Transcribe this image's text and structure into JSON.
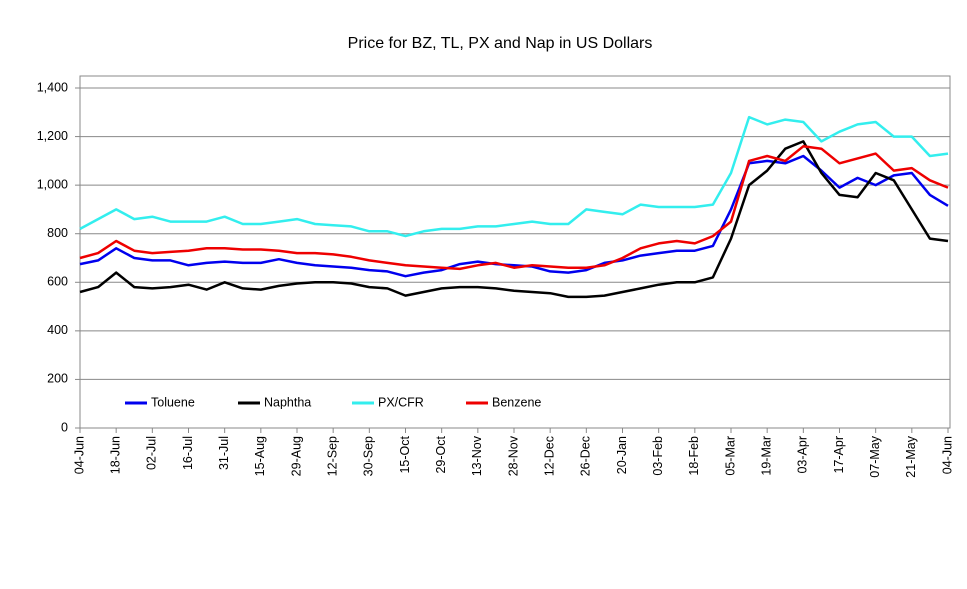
{
  "chart_data": {
    "type": "line",
    "title": "Price for BZ, TL, PX and Nap in US Dollars",
    "categories": [
      "04-Jun",
      null,
      "18-Jun",
      null,
      "02-Jul",
      null,
      "16-Jul",
      null,
      "31-Jul",
      null,
      "15-Aug",
      null,
      "29-Aug",
      null,
      "12-Sep",
      null,
      "30-Sep",
      null,
      "15-Oct",
      null,
      "29-Oct",
      null,
      "13-Nov",
      null,
      "28-Nov",
      null,
      "12-Dec",
      null,
      "26-Dec",
      null,
      "20-Jan",
      null,
      "03-Feb",
      null,
      "18-Feb",
      null,
      "05-Mar",
      null,
      "19-Mar",
      null,
      "03-Apr",
      null,
      "17-Apr",
      null,
      "07-May",
      null,
      "21-May",
      null,
      "04-Jun"
    ],
    "series": [
      {
        "name": "Toluene",
        "color": "#0000ee",
        "values": [
          675,
          690,
          740,
          700,
          690,
          690,
          670,
          680,
          685,
          680,
          680,
          695,
          680,
          670,
          665,
          660,
          650,
          645,
          625,
          640,
          650,
          675,
          685,
          675,
          670,
          665,
          645,
          640,
          650,
          680,
          690,
          710,
          720,
          730,
          730,
          750,
          900,
          1090,
          1100,
          1090,
          1120,
          1060,
          990,
          1030,
          1000,
          1040,
          1050,
          960,
          915
        ]
      },
      {
        "name": "Naphtha",
        "color": "#000000",
        "values": [
          560,
          580,
          640,
          580,
          575,
          580,
          590,
          570,
          600,
          575,
          570,
          585,
          595,
          600,
          600,
          595,
          580,
          575,
          545,
          560,
          575,
          580,
          580,
          575,
          565,
          560,
          555,
          540,
          540,
          545,
          560,
          575,
          590,
          600,
          600,
          620,
          780,
          1000,
          1060,
          1150,
          1180,
          1050,
          960,
          950,
          1050,
          1020,
          900,
          780,
          770
        ]
      },
      {
        "name": "PX/CFR",
        "color": "#33eeee",
        "values": [
          820,
          860,
          900,
          860,
          870,
          850,
          850,
          850,
          870,
          840,
          840,
          850,
          860,
          840,
          835,
          830,
          810,
          810,
          790,
          810,
          820,
          820,
          830,
          830,
          840,
          850,
          840,
          840,
          900,
          890,
          880,
          920,
          910,
          910,
          910,
          920,
          1050,
          1280,
          1250,
          1270,
          1260,
          1180,
          1220,
          1250,
          1260,
          1200,
          1200,
          1120,
          1130
        ]
      },
      {
        "name": "Benzene",
        "color": "#ee0000",
        "values": [
          700,
          720,
          770,
          730,
          720,
          725,
          730,
          740,
          740,
          735,
          735,
          730,
          720,
          720,
          715,
          705,
          690,
          680,
          670,
          665,
          660,
          655,
          670,
          680,
          660,
          670,
          665,
          660,
          660,
          670,
          700,
          740,
          760,
          770,
          760,
          790,
          850,
          1100,
          1120,
          1100,
          1160,
          1150,
          1090,
          1110,
          1130,
          1060,
          1070,
          1020,
          990
        ]
      }
    ],
    "ylim": [
      0,
      1400
    ],
    "yticks": [
      0,
      200,
      400,
      600,
      800,
      {
        "value": 1000,
        "label": "1,000"
      },
      {
        "value": 1200,
        "label": "1,200"
      },
      {
        "value": 1400,
        "label": "1,400"
      }
    ],
    "grid": true
  }
}
